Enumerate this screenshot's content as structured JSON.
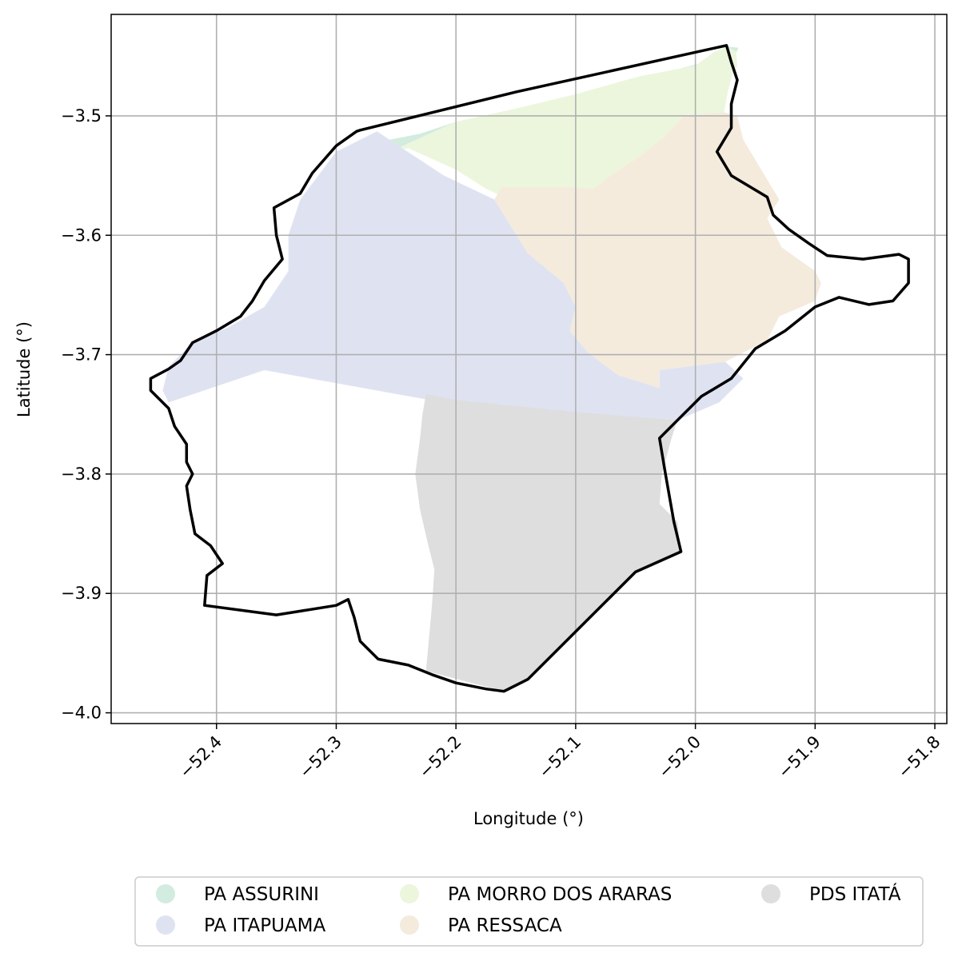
{
  "map": {
    "xlabel": "Longitude (°)",
    "ylabel": "Latitude (°)",
    "xlim": [
      -52.488,
      -51.79
    ],
    "ylim": [
      -4.009,
      -3.415
    ],
    "grid": true,
    "x_ticks": [
      {
        "value": -52.4,
        "label": "−52.4"
      },
      {
        "value": -52.3,
        "label": "−52.3"
      },
      {
        "value": -52.2,
        "label": "−52.2"
      },
      {
        "value": -52.1,
        "label": "−52.1"
      },
      {
        "value": -52.0,
        "label": "−52.0"
      },
      {
        "value": -51.9,
        "label": "−51.9"
      },
      {
        "value": -51.8,
        "label": "−51.8"
      }
    ],
    "y_ticks": [
      {
        "value": -3.5,
        "label": "−3.5"
      },
      {
        "value": -3.6,
        "label": "−3.6"
      },
      {
        "value": -3.7,
        "label": "−3.7"
      },
      {
        "value": -3.8,
        "label": "−3.8"
      },
      {
        "value": -3.9,
        "label": "−3.9"
      },
      {
        "value": -4.0,
        "label": "−4.0"
      }
    ],
    "legend_placement": "bottom-center",
    "legend": [
      {
        "label": "PA ASSURINI",
        "color": "#d2ecdf"
      },
      {
        "label": "PA ITAPUAMA",
        "color": "#dfe3f1"
      },
      {
        "label": "PA MORRO DOS ARARAS",
        "color": "#ecf6dc"
      },
      {
        "label": "PA RESSACA",
        "color": "#f4ebdd"
      },
      {
        "label": "PDS ITATÁ",
        "color": "#dedede"
      }
    ],
    "boundary_color": "#000000",
    "regions": [
      {
        "name": "PA ASSURINI",
        "color": "#d2ecdf",
        "coords": [
          [
            -52.266,
            -3.522
          ],
          [
            -52.23,
            -3.515
          ],
          [
            -52.2,
            -3.505
          ],
          [
            -52.15,
            -3.497
          ],
          [
            -52.1,
            -3.483
          ],
          [
            -52.05,
            -3.47
          ],
          [
            -52.0,
            -3.457
          ],
          [
            -51.968,
            -3.449
          ],
          [
            -51.966,
            -3.447
          ],
          [
            -51.964,
            -3.443
          ],
          [
            -51.974,
            -3.442
          ],
          [
            -51.985,
            -3.447
          ],
          [
            -52.0,
            -3.458
          ],
          [
            -52.047,
            -3.467
          ],
          [
            -52.1,
            -3.482
          ],
          [
            -52.15,
            -3.494
          ],
          [
            -52.2,
            -3.505
          ],
          [
            -52.255,
            -3.53
          ],
          [
            -52.264,
            -3.532
          ]
        ]
      },
      {
        "name": "PA MORRO DOS ARARAS",
        "color": "#ecf6dc",
        "coords": [
          [
            -52.255,
            -3.53
          ],
          [
            -52.2,
            -3.505
          ],
          [
            -52.15,
            -3.494
          ],
          [
            -52.1,
            -3.482
          ],
          [
            -52.047,
            -3.467
          ],
          [
            -52.0,
            -3.458
          ],
          [
            -51.985,
            -3.447
          ],
          [
            -51.974,
            -3.442
          ],
          [
            -51.966,
            -3.446
          ],
          [
            -51.965,
            -3.458
          ],
          [
            -51.969,
            -3.465
          ],
          [
            -51.973,
            -3.48
          ],
          [
            -51.976,
            -3.497
          ],
          [
            -51.999,
            -3.499
          ],
          [
            -52.01,
            -3.5
          ],
          [
            -52.025,
            -3.517
          ],
          [
            -52.048,
            -3.535
          ],
          [
            -52.071,
            -3.55
          ],
          [
            -52.085,
            -3.561
          ],
          [
            -52.1,
            -3.56
          ],
          [
            -52.13,
            -3.56
          ],
          [
            -52.16,
            -3.568
          ],
          [
            -52.175,
            -3.561
          ],
          [
            -52.2,
            -3.545
          ],
          [
            -52.24,
            -3.527
          ]
        ]
      },
      {
        "name": "PA RESSACA",
        "color": "#f4ebdd",
        "coords": [
          [
            -52.168,
            -3.57
          ],
          [
            -52.162,
            -3.56
          ],
          [
            -52.13,
            -3.56
          ],
          [
            -52.1,
            -3.56
          ],
          [
            -52.085,
            -3.561
          ],
          [
            -52.071,
            -3.55
          ],
          [
            -52.048,
            -3.535
          ],
          [
            -52.025,
            -3.517
          ],
          [
            -52.01,
            -3.5
          ],
          [
            -51.999,
            -3.499
          ],
          [
            -51.976,
            -3.497
          ],
          [
            -51.965,
            -3.5
          ],
          [
            -51.96,
            -3.52
          ],
          [
            -51.945,
            -3.545
          ],
          [
            -51.93,
            -3.57
          ],
          [
            -51.94,
            -3.586
          ],
          [
            -51.928,
            -3.61
          ],
          [
            -51.9,
            -3.63
          ],
          [
            -51.895,
            -3.64
          ],
          [
            -51.9,
            -3.655
          ],
          [
            -51.93,
            -3.668
          ],
          [
            -51.94,
            -3.688
          ],
          [
            -51.975,
            -3.706
          ],
          [
            -52.03,
            -3.713
          ],
          [
            -52.03,
            -3.728
          ],
          [
            -52.065,
            -3.717
          ],
          [
            -52.09,
            -3.698
          ],
          [
            -52.105,
            -3.68
          ],
          [
            -52.1,
            -3.66
          ],
          [
            -52.11,
            -3.64
          ],
          [
            -52.14,
            -3.615
          ]
        ]
      },
      {
        "name": "PA ITAPUAMA",
        "color": "#dfe3f1",
        "coords": [
          [
            -52.266,
            -3.513
          ],
          [
            -52.245,
            -3.527
          ],
          [
            -52.21,
            -3.55
          ],
          [
            -52.168,
            -3.57
          ],
          [
            -52.14,
            -3.615
          ],
          [
            -52.11,
            -3.64
          ],
          [
            -52.1,
            -3.66
          ],
          [
            -52.105,
            -3.68
          ],
          [
            -52.09,
            -3.698
          ],
          [
            -52.065,
            -3.717
          ],
          [
            -52.03,
            -3.728
          ],
          [
            -52.03,
            -3.713
          ],
          [
            -51.975,
            -3.706
          ],
          [
            -51.96,
            -3.72
          ],
          [
            -51.98,
            -3.74
          ],
          [
            -52.015,
            -3.755
          ],
          [
            -52.2,
            -3.742
          ],
          [
            -52.36,
            -3.713
          ],
          [
            -52.44,
            -3.74
          ],
          [
            -52.445,
            -3.73
          ],
          [
            -52.44,
            -3.71
          ],
          [
            -52.42,
            -3.69
          ],
          [
            -52.39,
            -3.677
          ],
          [
            -52.36,
            -3.66
          ],
          [
            -52.34,
            -3.63
          ],
          [
            -52.34,
            -3.6
          ],
          [
            -52.33,
            -3.57
          ],
          [
            -52.3,
            -3.53
          ]
        ]
      },
      {
        "name": "PDS ITATÁ",
        "color": "#dedede",
        "coords": [
          [
            -52.225,
            -3.733
          ],
          [
            -52.2,
            -3.738
          ],
          [
            -52.1,
            -3.748
          ],
          [
            -52.015,
            -3.755
          ],
          [
            -52.02,
            -3.77
          ],
          [
            -52.028,
            -3.8
          ],
          [
            -52.03,
            -3.825
          ],
          [
            -52.015,
            -3.84
          ],
          [
            -52.012,
            -3.865
          ],
          [
            -52.05,
            -3.882
          ],
          [
            -52.14,
            -3.972
          ],
          [
            -52.16,
            -3.982
          ],
          [
            -52.225,
            -3.965
          ],
          [
            -52.22,
            -3.91
          ],
          [
            -52.218,
            -3.88
          ],
          [
            -52.223,
            -3.86
          ],
          [
            -52.23,
            -3.83
          ],
          [
            -52.234,
            -3.8
          ],
          [
            -52.23,
            -3.77
          ],
          [
            -52.228,
            -3.75
          ]
        ]
      }
    ],
    "boundary": [
      [
        -52.283,
        -3.513
      ],
      [
        -52.3,
        -3.525
      ],
      [
        -52.32,
        -3.548
      ],
      [
        -52.33,
        -3.565
      ],
      [
        -52.352,
        -3.577
      ],
      [
        -52.35,
        -3.6
      ],
      [
        -52.345,
        -3.62
      ],
      [
        -52.36,
        -3.638
      ],
      [
        -52.37,
        -3.655
      ],
      [
        -52.38,
        -3.668
      ],
      [
        -52.4,
        -3.68
      ],
      [
        -52.42,
        -3.69
      ],
      [
        -52.43,
        -3.705
      ],
      [
        -52.44,
        -3.712
      ],
      [
        -52.455,
        -3.72
      ],
      [
        -52.455,
        -3.73
      ],
      [
        -52.44,
        -3.745
      ],
      [
        -52.435,
        -3.76
      ],
      [
        -52.425,
        -3.775
      ],
      [
        -52.425,
        -3.79
      ],
      [
        -52.42,
        -3.8
      ],
      [
        -52.425,
        -3.81
      ],
      [
        -52.422,
        -3.83
      ],
      [
        -52.418,
        -3.85
      ],
      [
        -52.405,
        -3.86
      ],
      [
        -52.395,
        -3.875
      ],
      [
        -52.408,
        -3.885
      ],
      [
        -52.41,
        -3.91
      ],
      [
        -52.35,
        -3.918
      ],
      [
        -52.3,
        -3.91
      ],
      [
        -52.29,
        -3.905
      ],
      [
        -52.285,
        -3.92
      ],
      [
        -52.28,
        -3.94
      ],
      [
        -52.265,
        -3.955
      ],
      [
        -52.24,
        -3.96
      ],
      [
        -52.22,
        -3.968
      ],
      [
        -52.2,
        -3.975
      ],
      [
        -52.175,
        -3.98
      ],
      [
        -52.16,
        -3.982
      ],
      [
        -52.14,
        -3.972
      ],
      [
        -52.05,
        -3.882
      ],
      [
        -52.012,
        -3.865
      ],
      [
        -52.018,
        -3.84
      ],
      [
        -52.025,
        -3.8
      ],
      [
        -52.03,
        -3.77
      ],
      [
        -52.015,
        -3.755
      ],
      [
        -51.995,
        -3.735
      ],
      [
        -51.97,
        -3.72
      ],
      [
        -51.95,
        -3.695
      ],
      [
        -51.925,
        -3.68
      ],
      [
        -51.9,
        -3.66
      ],
      [
        -51.88,
        -3.652
      ],
      [
        -51.855,
        -3.658
      ],
      [
        -51.835,
        -3.655
      ],
      [
        -51.822,
        -3.64
      ],
      [
        -51.822,
        -3.62
      ],
      [
        -51.83,
        -3.616
      ],
      [
        -51.86,
        -3.62
      ],
      [
        -51.89,
        -3.617
      ],
      [
        -51.905,
        -3.607
      ],
      [
        -51.922,
        -3.595
      ],
      [
        -51.935,
        -3.583
      ],
      [
        -51.94,
        -3.568
      ],
      [
        -51.97,
        -3.55
      ],
      [
        -51.982,
        -3.53
      ],
      [
        -51.97,
        -3.51
      ],
      [
        -51.97,
        -3.49
      ],
      [
        -51.965,
        -3.47
      ],
      [
        -51.97,
        -3.455
      ],
      [
        -51.974,
        -3.441
      ],
      [
        -52.15,
        -3.48
      ],
      [
        -52.28,
        -3.512
      ]
    ]
  }
}
